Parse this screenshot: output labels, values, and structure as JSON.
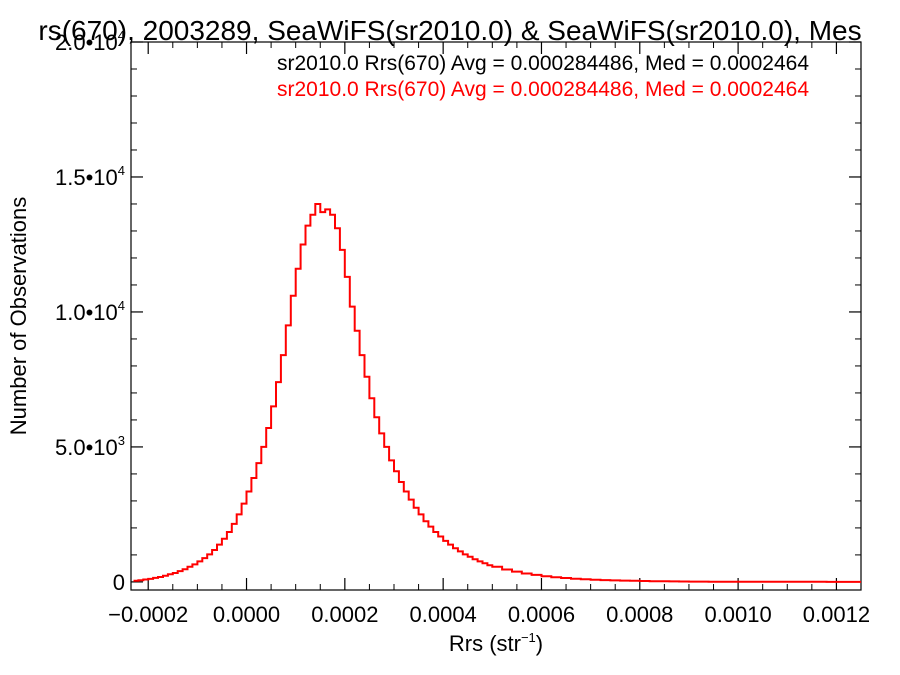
{
  "colors": {
    "axes": "#000000",
    "series_black": "#000000",
    "series_red": "#ff0000"
  },
  "chart_data": {
    "type": "line",
    "title": "rs(670), 2003289, SeaWiFS(sr2010.0) & SeaWiFS(sr2010.0), Mes",
    "xlabel_main": "Rrs (str",
    "xlabel_sup": "−1",
    "xlabel_end": ")",
    "ylabel": "Number of Observations",
    "xlim": [
      -0.000235,
      0.00125
    ],
    "ylim": [
      -300,
      20000
    ],
    "x_ticks": [
      {
        "value": -0.0002,
        "label": "−0.0002"
      },
      {
        "value": 0.0,
        "label": "0.0000"
      },
      {
        "value": 0.0002,
        "label": "0.0002"
      },
      {
        "value": 0.0004,
        "label": "0.0004"
      },
      {
        "value": 0.0006,
        "label": "0.0006"
      },
      {
        "value": 0.0008,
        "label": "0.0008"
      },
      {
        "value": 0.001,
        "label": "0.0010"
      },
      {
        "value": 0.0012,
        "label": "0.0012"
      }
    ],
    "y_ticks": [
      {
        "value": 0,
        "mant": "0",
        "exp": ""
      },
      {
        "value": 5000,
        "mant": "5.0•10",
        "exp": "3"
      },
      {
        "value": 10000,
        "mant": "1.0•10",
        "exp": "4"
      },
      {
        "value": 15000,
        "mant": "1.5•10",
        "exp": "4"
      },
      {
        "value": 20000,
        "mant": "2.0•10",
        "exp": "4"
      }
    ],
    "legend": [
      {
        "text": "sr2010.0 Rrs(670) Avg = 0.000284486, Med = 0.0002464",
        "color": "#000000"
      },
      {
        "text": "sr2010.0 Rrs(670) Avg = 0.000284486, Med = 0.0002464",
        "color": "#ff0000"
      }
    ],
    "legend_position": "top-right",
    "grid": false,
    "series": [
      {
        "color": "#ff0000",
        "x": [
          -0.00023,
          -0.00022,
          -0.00021,
          -0.0002,
          -0.00019,
          -0.00018,
          -0.00017,
          -0.00016,
          -0.00015,
          -0.00014,
          -0.00013,
          -0.00012,
          -0.00011,
          -0.0001,
          -9e-05,
          -8e-05,
          -7e-05,
          -6e-05,
          -5e-05,
          -4e-05,
          -3e-05,
          -2e-05,
          -1e-05,
          0.0,
          1e-05,
          2e-05,
          3e-05,
          4e-05,
          5e-05,
          6e-05,
          7e-05,
          8e-05,
          9e-05,
          0.0001,
          0.00011,
          0.00012,
          0.00013,
          0.00014,
          0.00015,
          0.00016,
          0.00017,
          0.00018,
          0.00019,
          0.0002,
          0.00021,
          0.00022,
          0.00023,
          0.00024,
          0.00025,
          0.00026,
          0.00027,
          0.00028,
          0.00029,
          0.0003,
          0.00031,
          0.00032,
          0.00033,
          0.00034,
          0.00035,
          0.00036,
          0.00037,
          0.00038,
          0.00039,
          0.0004,
          0.00041,
          0.00042,
          0.00043,
          0.00044,
          0.00045,
          0.00046,
          0.00047,
          0.00048,
          0.00049,
          0.0005,
          0.00052,
          0.00054,
          0.00056,
          0.00058,
          0.0006,
          0.00062,
          0.00064,
          0.00066,
          0.00068,
          0.0007,
          0.00072,
          0.00074,
          0.00076,
          0.00078,
          0.0008,
          0.00082,
          0.00084,
          0.00086,
          0.00088,
          0.0009,
          0.00092,
          0.00094,
          0.00096,
          0.00098,
          0.001,
          0.00102,
          0.00104,
          0.00106,
          0.00108,
          0.0011,
          0.00112,
          0.00114,
          0.00116,
          0.00118,
          0.0012,
          0.00122,
          0.00124
        ],
        "y": [
          40,
          60,
          90,
          110,
          150,
          180,
          230,
          280,
          330,
          400,
          470,
          560,
          650,
          760,
          880,
          1020,
          1180,
          1380,
          1600,
          1850,
          2150,
          2500,
          2900,
          3350,
          3850,
          4400,
          5000,
          5700,
          6500,
          7400,
          8400,
          9500,
          10600,
          11600,
          12500,
          13200,
          13600,
          14000,
          13700,
          13800,
          13600,
          13100,
          12300,
          11300,
          10200,
          9300,
          8400,
          7600,
          6800,
          6100,
          5500,
          5000,
          4500,
          4100,
          3700,
          3350,
          3050,
          2750,
          2500,
          2250,
          2050,
          1850,
          1680,
          1520,
          1380,
          1250,
          1130,
          1020,
          930,
          840,
          760,
          690,
          620,
          560,
          460,
          380,
          310,
          260,
          210,
          175,
          145,
          120,
          100,
          82,
          68,
          56,
          47,
          39,
          32,
          27,
          22,
          18,
          15,
          13,
          11,
          9,
          8,
          7,
          6,
          5,
          4,
          4,
          3,
          3,
          2,
          2,
          2,
          1,
          1,
          1,
          1
        ]
      }
    ]
  }
}
